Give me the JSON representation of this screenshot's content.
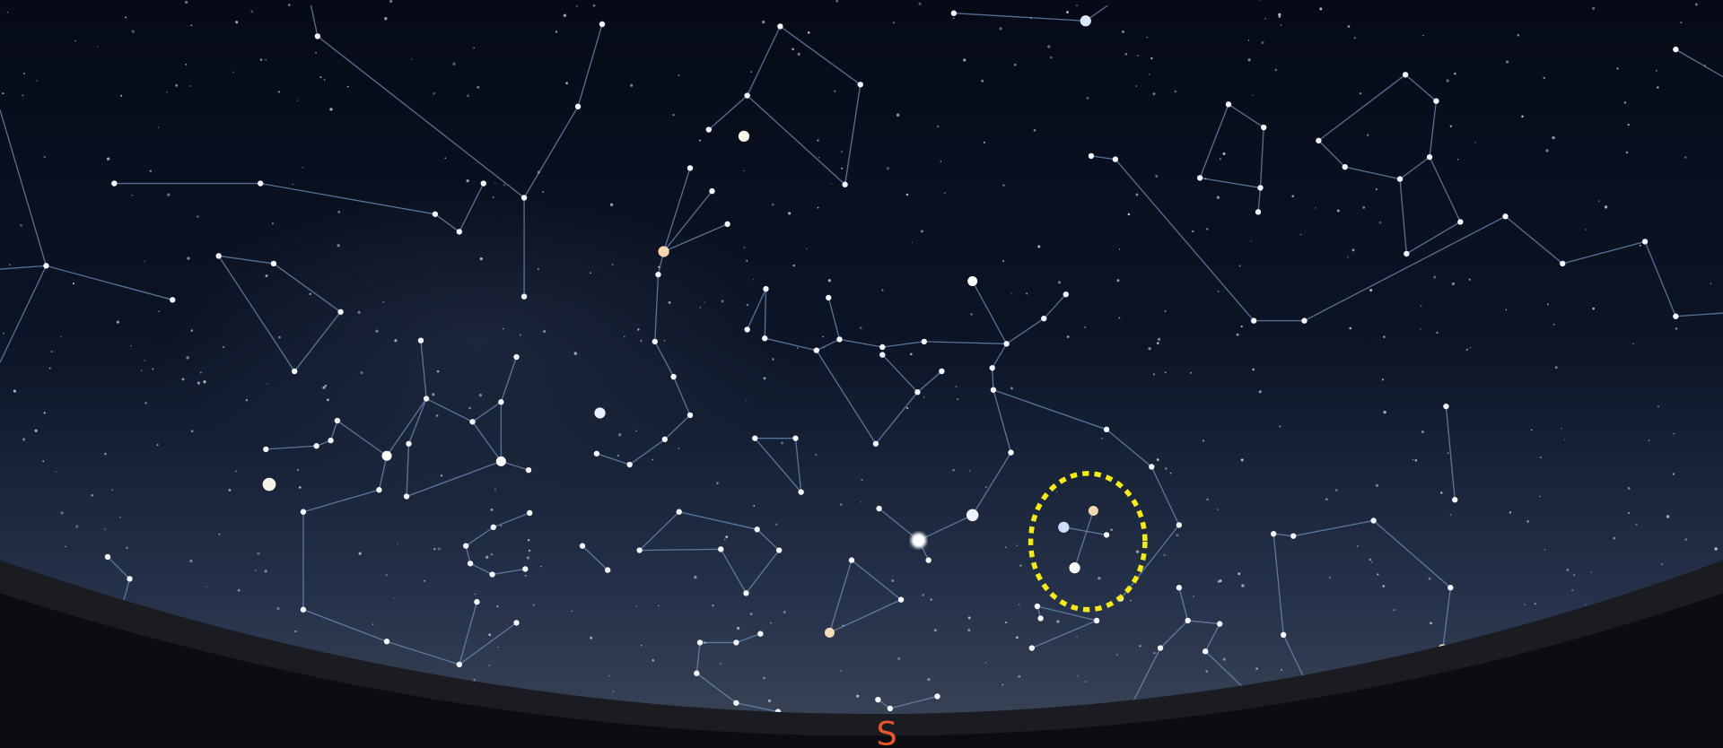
{
  "compass": {
    "label": "S"
  }
}
